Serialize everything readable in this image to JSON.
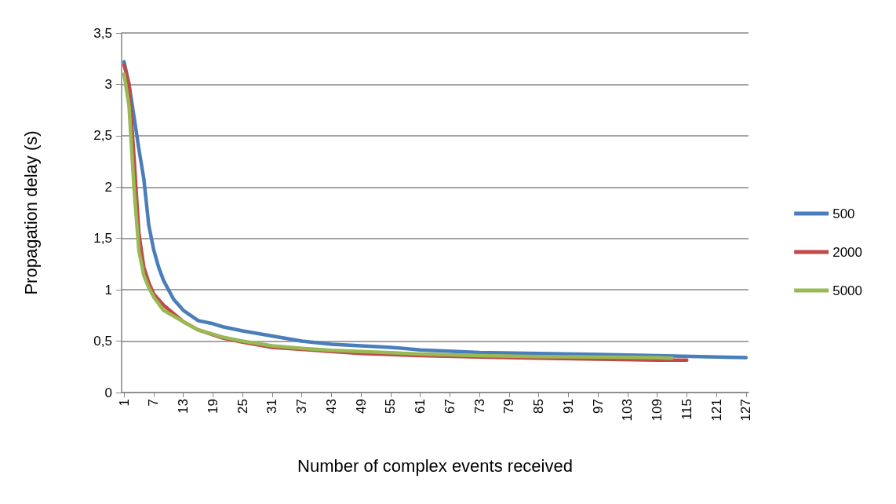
{
  "chart_data": {
    "type": "line",
    "xlabel": "Number of complex events received",
    "ylabel": "Propagation delay (s)",
    "xlim": [
      0.5,
      127.5
    ],
    "xticks": [
      1,
      7,
      13,
      19,
      25,
      31,
      37,
      43,
      49,
      55,
      61,
      67,
      73,
      79,
      85,
      91,
      97,
      103,
      109,
      115,
      121,
      127
    ],
    "ylim": [
      0,
      3.5
    ],
    "yticks": [
      0,
      {
        "value": 0.5,
        "label": "0,5"
      },
      1,
      {
        "value": 1.5,
        "label": "1,5"
      },
      2,
      {
        "value": 2.5,
        "label": "2,5"
      },
      3,
      {
        "value": 3.5,
        "label": "3,5"
      }
    ],
    "grid": "y",
    "legend": "right",
    "marker": "none",
    "line_style": "solid",
    "series": [
      {
        "name": "500",
        "color": "#4a7ebb",
        "x": [
          1,
          2,
          3,
          4,
          5,
          6,
          7,
          8,
          9,
          10,
          11,
          13,
          16,
          19,
          21,
          25,
          31,
          37,
          43,
          49,
          55,
          61,
          73,
          85,
          97,
          109,
          121,
          127
        ],
        "values": [
          3.22,
          3.0,
          2.69,
          2.37,
          2.08,
          1.63,
          1.39,
          1.22,
          1.09,
          1.0,
          0.91,
          0.8,
          0.7,
          0.67,
          0.64,
          0.6,
          0.55,
          0.5,
          0.47,
          0.455,
          0.44,
          0.415,
          0.39,
          0.38,
          0.37,
          0.36,
          0.345,
          0.34
        ]
      },
      {
        "name": "2000",
        "color": "#be4b48",
        "x": [
          1,
          2,
          3,
          4,
          5,
          6,
          7,
          9,
          13,
          16,
          21,
          25,
          31,
          37,
          43,
          49,
          61,
          73,
          85,
          97,
          109,
          115
        ],
        "values": [
          3.19,
          3.0,
          2.3,
          1.55,
          1.22,
          1.07,
          0.96,
          0.85,
          0.69,
          0.61,
          0.53,
          0.49,
          0.44,
          0.42,
          0.4,
          0.38,
          0.36,
          0.345,
          0.335,
          0.325,
          0.315,
          0.315
        ]
      },
      {
        "name": "5000",
        "color": "#98b954",
        "x": [
          1,
          2,
          3,
          4,
          5,
          6,
          7,
          9,
          13,
          16,
          21,
          25,
          31,
          37,
          43,
          49,
          61,
          73,
          85,
          97,
          109,
          112
        ],
        "values": [
          3.1,
          2.79,
          2.0,
          1.38,
          1.14,
          1.02,
          0.93,
          0.8,
          0.69,
          0.61,
          0.54,
          0.5,
          0.455,
          0.43,
          0.41,
          0.4,
          0.375,
          0.36,
          0.35,
          0.345,
          0.34,
          0.335
        ]
      }
    ]
  }
}
